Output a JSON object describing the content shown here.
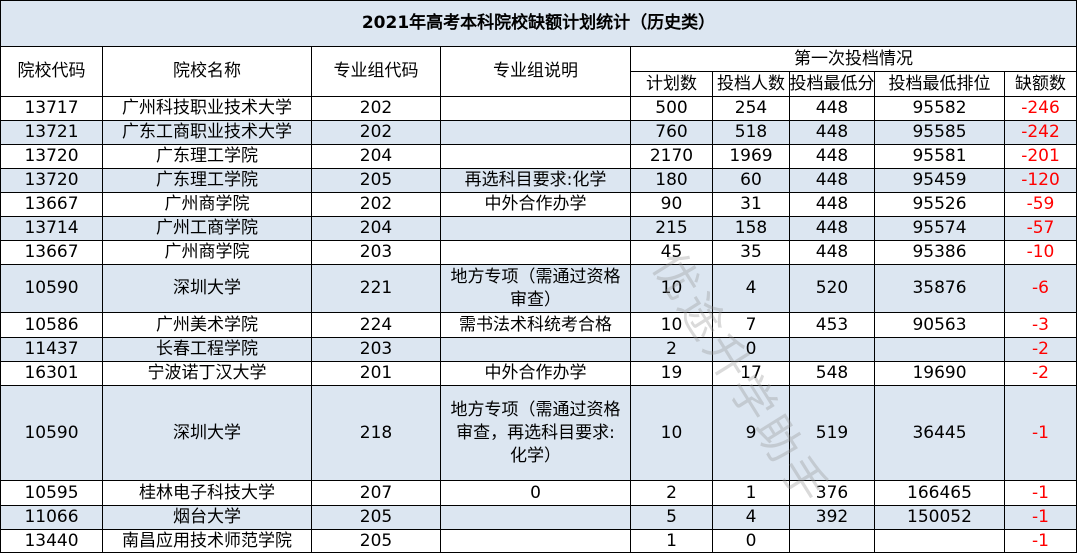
{
  "title": "2021年高考本科院校缺额计划统计（历史类）",
  "header": {
    "code": "院校代码",
    "name": "院校名称",
    "group": "专业组代码",
    "note": "专业组说明",
    "round": "第一次投档情况",
    "sub": [
      "计划数",
      "投档人数",
      "投档最低分",
      "投档最低排位",
      "缺额数"
    ]
  },
  "table": {
    "rows": [
      [
        "13717",
        "广州科技职业技术大学",
        "202",
        null,
        500,
        254,
        448,
        95582,
        -246
      ],
      [
        "13721",
        "广东工商职业技术大学",
        "202",
        null,
        760,
        518,
        448,
        95585,
        -242
      ],
      [
        "13720",
        "广东理工学院",
        "204",
        null,
        2170,
        1969,
        448,
        95581,
        -201
      ],
      [
        "13720",
        "广东理工学院",
        "205",
        "再选科目要求:化学",
        180,
        60,
        448,
        95459,
        -120
      ],
      [
        "13667",
        "广州商学院",
        "202",
        "中外合作办学",
        90,
        31,
        448,
        95526,
        -59
      ],
      [
        "13714",
        "广州工商学院",
        "204",
        null,
        215,
        158,
        448,
        95574,
        -57
      ],
      [
        "13667",
        "广州商学院",
        "203",
        null,
        45,
        35,
        448,
        95386,
        -10
      ],
      [
        "10590",
        "深圳大学",
        "221",
        "地方专项（需通过资格审查）",
        10,
        4,
        520,
        35876,
        -6
      ],
      [
        "10586",
        "广州美术学院",
        "224",
        "需书法术科统考合格",
        10,
        7,
        453,
        90563,
        -3
      ],
      [
        "11437",
        "长春工程学院",
        "203",
        null,
        2,
        0,
        null,
        null,
        -2
      ],
      [
        "16301",
        "宁波诺丁汉大学",
        "201",
        "中外合作办学",
        19,
        17,
        548,
        19690,
        -2
      ],
      [
        "10590",
        "深圳大学",
        "218",
        "地方专项（需通过资格审查，再选科目要求:化学）",
        10,
        9,
        519,
        36445,
        -1
      ],
      [
        "10595",
        "桂林电子科技大学",
        "207",
        "0",
        2,
        1,
        376,
        166465,
        -1
      ],
      [
        "11066",
        "烟台大学",
        "205",
        null,
        5,
        4,
        392,
        150052,
        -1
      ],
      [
        "13440",
        "南昌应用技术师范学院",
        "205",
        null,
        1,
        0,
        null,
        null,
        -1
      ]
    ]
  },
  "watermark": "优途升学助手"
}
